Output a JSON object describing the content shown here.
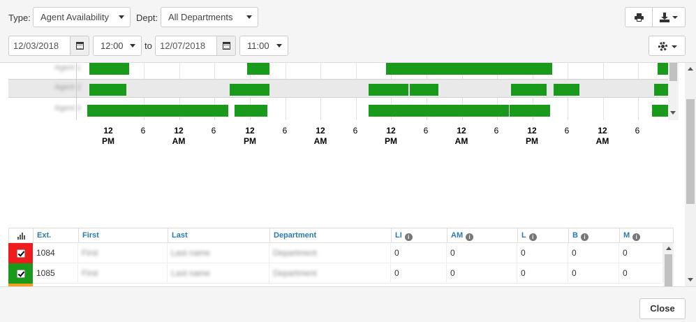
{
  "filters": {
    "type_label": "Type:",
    "type_value": "Agent Availability",
    "dept_label": "Dept:",
    "dept_value": "All Departments",
    "start_date": "12/03/2018",
    "start_time": "12:00",
    "to_label": "to",
    "end_date": "12/07/2018",
    "end_time": "11:00"
  },
  "toolbar": {
    "print_icon": "print-icon",
    "download_icon": "download-icon",
    "settings_icon": "gear-icon"
  },
  "timeline": {
    "bar_color": "#1a9a1a",
    "rows": [
      {
        "name": "Agent 1"
      },
      {
        "name": "Agent 2"
      },
      {
        "name": "Agent 3"
      }
    ],
    "ticks": [
      {
        "top": "12",
        "bottom": "PM"
      },
      {
        "top": "6",
        "bottom": ""
      },
      {
        "top": "12",
        "bottom": "AM"
      },
      {
        "top": "6",
        "bottom": ""
      },
      {
        "top": "12",
        "bottom": "PM"
      },
      {
        "top": "6",
        "bottom": ""
      },
      {
        "top": "12",
        "bottom": "AM"
      },
      {
        "top": "6",
        "bottom": ""
      },
      {
        "top": "12",
        "bottom": "PM"
      },
      {
        "top": "6",
        "bottom": ""
      },
      {
        "top": "12",
        "bottom": "AM"
      },
      {
        "top": "6",
        "bottom": ""
      },
      {
        "top": "12",
        "bottom": "PM"
      },
      {
        "top": "6",
        "bottom": ""
      },
      {
        "top": "12",
        "bottom": "AM"
      },
      {
        "top": "6",
        "bottom": ""
      }
    ]
  },
  "table": {
    "columns": [
      "Ext.",
      "First",
      "Last",
      "Department",
      "LI",
      "AM",
      "L",
      "B",
      "M"
    ],
    "rows": [
      {
        "status_color": "#ee1c1c",
        "ext": "1084",
        "first": "First",
        "last": "Last name",
        "department": "Department",
        "li": "0",
        "am": "0",
        "l": "0",
        "b": "0",
        "m": "0"
      },
      {
        "status_color": "#1a9a1a",
        "ext": "1085",
        "first": "First",
        "last": "Last name",
        "department": "Department",
        "li": "0",
        "am": "0",
        "l": "0",
        "b": "0",
        "m": "0"
      },
      {
        "status_color": "#f0a020",
        "ext": "",
        "first": "",
        "last": "",
        "department": "",
        "li": "",
        "am": "",
        "l": "",
        "b": "",
        "m": ""
      }
    ]
  },
  "footer": {
    "close_label": "Close"
  }
}
